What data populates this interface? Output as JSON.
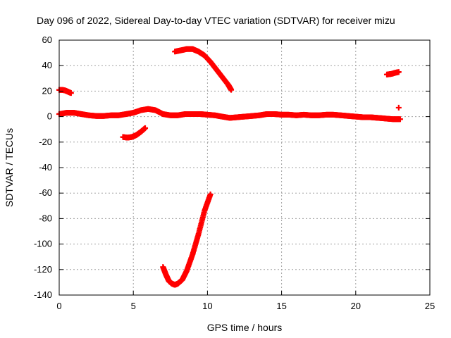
{
  "chart_data": {
    "type": "scatter",
    "title": "Day 096 of 2022, Sidereal Day-to-day VTEC variation (SDTVAR) for receiver mizu",
    "xlabel": "GPS time / hours",
    "ylabel": "SDTVAR / TECUs",
    "xlim": [
      0,
      25
    ],
    "ylim": [
      -140,
      60
    ],
    "xticks": [
      0,
      5,
      10,
      15,
      20,
      25
    ],
    "yticks": [
      -140,
      -120,
      -100,
      -80,
      -60,
      -40,
      -20,
      0,
      20,
      40,
      60
    ],
    "grid": true,
    "marker_color": "#ff0000",
    "series": [
      {
        "name": "near-zero trace",
        "x": [
          0,
          0.5,
          1,
          1.5,
          2,
          2.5,
          3,
          3.5,
          4,
          4.5,
          5,
          5.5,
          6,
          6.5,
          7,
          7.5,
          8,
          8.5,
          9,
          9.5,
          10,
          10.5,
          11,
          11.5,
          12,
          12.5,
          13,
          13.5,
          14,
          14.5,
          15,
          15.5,
          16,
          16.5,
          17,
          17.5,
          18,
          18.5,
          19,
          19.5,
          20,
          20.5,
          21,
          21.5,
          22,
          22.5,
          23
        ],
        "y": [
          2,
          3,
          3,
          2,
          1,
          0.5,
          0.5,
          1,
          1,
          2,
          3,
          5,
          6,
          5,
          2,
          1,
          1,
          2,
          2,
          2,
          1.5,
          1,
          0,
          -1,
          -0.5,
          0,
          0.5,
          1,
          2,
          2,
          1.5,
          1.5,
          1,
          1.5,
          1,
          1,
          1.5,
          1.5,
          1,
          0.5,
          0,
          -0.5,
          -0.5,
          -1,
          -1.5,
          -2,
          -2
        ]
      },
      {
        "name": "segment near 0h",
        "x": [
          0,
          0.2,
          0.4,
          0.6,
          0.8
        ],
        "y": [
          21,
          21,
          20.5,
          19.5,
          18.5
        ]
      },
      {
        "name": "segment near 4-6h",
        "x": [
          4.3,
          4.6,
          4.9,
          5.2,
          5.5,
          5.8
        ],
        "y": [
          -16,
          -16.5,
          -16,
          -14.5,
          -12,
          -9
        ]
      },
      {
        "name": "upper arc",
        "x": [
          7.8,
          8.2,
          8.6,
          9,
          9.4,
          9.8,
          10.2,
          10.6,
          11,
          11.4,
          11.6
        ],
        "y": [
          51,
          52,
          53,
          53,
          51,
          48,
          43,
          37,
          31,
          25,
          21
        ]
      },
      {
        "name": "lower arc",
        "x": [
          7,
          7.2,
          7.4,
          7.6,
          7.8,
          8,
          8.3,
          8.6,
          9,
          9.4,
          9.8,
          10.2
        ],
        "y": [
          -118,
          -124,
          -129,
          -131,
          -132,
          -131,
          -128,
          -121,
          -108,
          -92,
          -74,
          -61
        ]
      },
      {
        "name": "segment near 22-23h",
        "x": [
          22.1,
          22.4,
          22.7,
          22.9
        ],
        "y": [
          33,
          33.5,
          34.5,
          35
        ]
      },
      {
        "name": "point near 23h",
        "x": [
          22.9
        ],
        "y": [
          7
        ]
      }
    ]
  }
}
